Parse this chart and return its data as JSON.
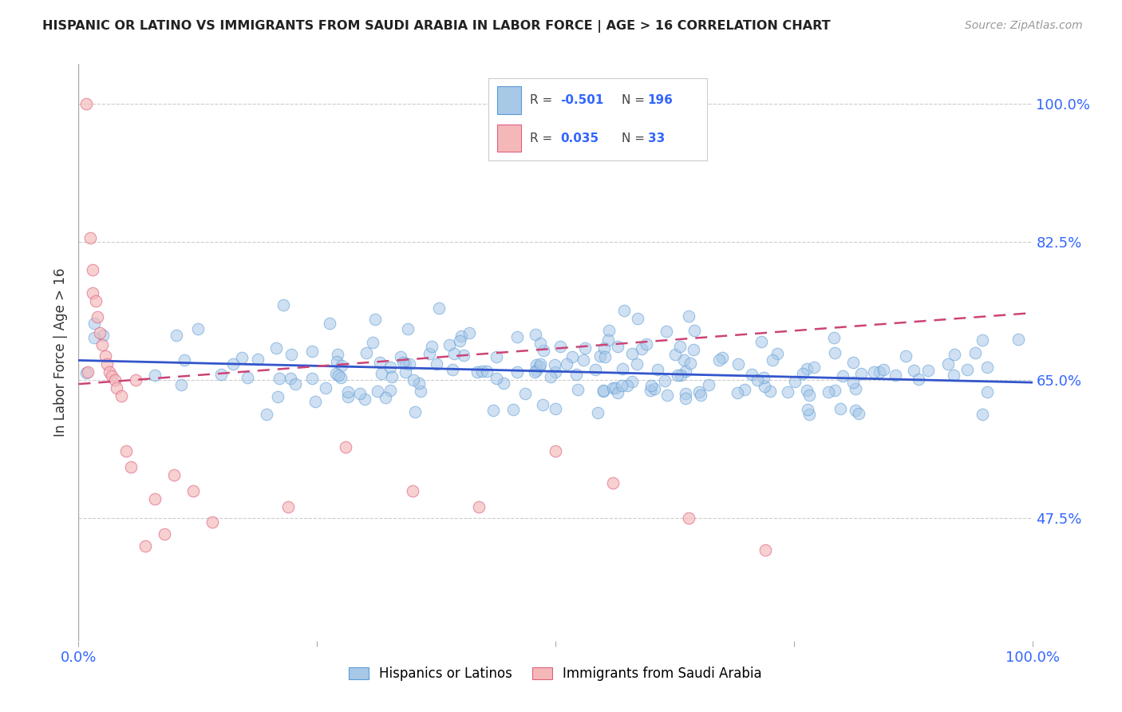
{
  "title": "HISPANIC OR LATINO VS IMMIGRANTS FROM SAUDI ARABIA IN LABOR FORCE | AGE > 16 CORRELATION CHART",
  "source": "Source: ZipAtlas.com",
  "ylabel": "In Labor Force | Age > 16",
  "xlim": [
    0.0,
    1.0
  ],
  "ylim": [
    0.32,
    1.05
  ],
  "yticks": [
    0.475,
    0.65,
    0.825,
    1.0
  ],
  "ytick_labels": [
    "47.5%",
    "65.0%",
    "82.5%",
    "100.0%"
  ],
  "xtick_labels": [
    "0.0%",
    "",
    "",
    "",
    "100.0%"
  ],
  "blue_color": "#a8c8e8",
  "blue_edge": "#5b9bd5",
  "pink_color": "#f4b8b8",
  "pink_edge": "#e06080",
  "trend_blue": "#3355cc",
  "trend_pink": "#cc4477",
  "legend_R1": "-0.501",
  "legend_N1": "196",
  "legend_R2": "0.035",
  "legend_N2": "33",
  "label1": "Hispanics or Latinos",
  "label2": "Immigrants from Saudi Arabia",
  "blue_trend_start": 0.675,
  "blue_trend_end": 0.647,
  "pink_trend_start": 0.645,
  "pink_trend_end": 0.735
}
